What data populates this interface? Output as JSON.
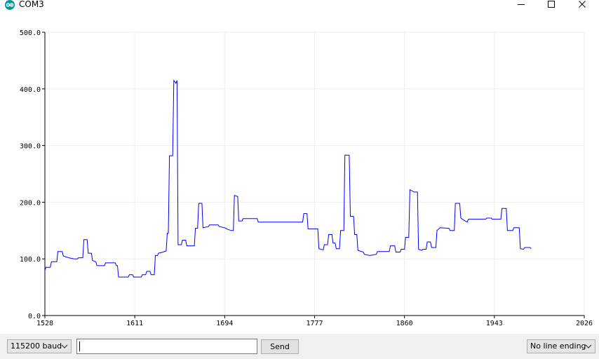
{
  "window": {
    "title": "COM3"
  },
  "icons": {
    "app": "arduino-logo-icon",
    "minimize": "minimize-icon",
    "maximize": "maximize-icon",
    "close": "close-icon",
    "dropdown": "chevron-down-icon"
  },
  "colors": {
    "line": "#0000ff",
    "grid": "#eeeeee",
    "axis": "#000000",
    "statusbar": "#f0f0f0",
    "app_icon": "#00979c"
  },
  "chart_data": {
    "type": "line",
    "ylim": [
      0,
      500
    ],
    "xlim": [
      1528,
      2026
    ],
    "yticks": [
      "0.0",
      "100.0",
      "200.0",
      "300.0",
      "400.0",
      "500.0"
    ],
    "xticks": [
      "1528",
      "1611",
      "1694",
      "1777",
      "1860",
      "1943",
      "2026"
    ],
    "grid": true,
    "series": [
      {
        "color": "#0000ff",
        "points": [
          [
            1528,
            80
          ],
          [
            1529,
            85
          ],
          [
            1533,
            85
          ],
          [
            1534,
            95
          ],
          [
            1539,
            95
          ],
          [
            1540,
            113
          ],
          [
            1544,
            113
          ],
          [
            1545,
            105
          ],
          [
            1550,
            102
          ],
          [
            1555,
            100
          ],
          [
            1558,
            100
          ],
          [
            1559,
            102
          ],
          [
            1563,
            102
          ],
          [
            1564,
            134
          ],
          [
            1567,
            134
          ],
          [
            1568,
            110
          ],
          [
            1571,
            110
          ],
          [
            1572,
            97
          ],
          [
            1575,
            95
          ],
          [
            1576,
            88
          ],
          [
            1583,
            88
          ],
          [
            1584,
            93
          ],
          [
            1593,
            93
          ],
          [
            1594,
            88
          ],
          [
            1595,
            88
          ],
          [
            1596,
            68
          ],
          [
            1605,
            68
          ],
          [
            1606,
            72
          ],
          [
            1609,
            72
          ],
          [
            1610,
            68
          ],
          [
            1617,
            68
          ],
          [
            1618,
            72
          ],
          [
            1621,
            72
          ],
          [
            1622,
            78
          ],
          [
            1625,
            78
          ],
          [
            1626,
            72
          ],
          [
            1629,
            72
          ],
          [
            1630,
            106
          ],
          [
            1632,
            106
          ],
          [
            1633,
            110
          ],
          [
            1637,
            112
          ],
          [
            1640,
            114
          ],
          [
            1641,
            145
          ],
          [
            1642,
            145
          ],
          [
            1643,
            282
          ],
          [
            1646,
            282
          ],
          [
            1647,
            415
          ],
          [
            1649,
            410
          ],
          [
            1650,
            415
          ],
          [
            1651,
            125
          ],
          [
            1654,
            125
          ],
          [
            1655,
            133
          ],
          [
            1658,
            133
          ],
          [
            1659,
            123
          ],
          [
            1666,
            123
          ],
          [
            1667,
            154
          ],
          [
            1669,
            154
          ],
          [
            1670,
            198
          ],
          [
            1673,
            198
          ],
          [
            1674,
            155
          ],
          [
            1679,
            157
          ],
          [
            1680,
            160
          ],
          [
            1688,
            160
          ],
          [
            1689,
            157
          ],
          [
            1694,
            155
          ],
          [
            1697,
            152
          ],
          [
            1700,
            150
          ],
          [
            1702,
            150
          ],
          [
            1703,
            212
          ],
          [
            1706,
            210
          ],
          [
            1707,
            167
          ],
          [
            1710,
            167
          ],
          [
            1711,
            171
          ],
          [
            1724,
            171
          ],
          [
            1725,
            165
          ],
          [
            1766,
            165
          ],
          [
            1767,
            180
          ],
          [
            1770,
            180
          ],
          [
            1771,
            153
          ],
          [
            1780,
            153
          ],
          [
            1781,
            118
          ],
          [
            1785,
            116
          ],
          [
            1786,
            125
          ],
          [
            1789,
            125
          ],
          [
            1790,
            143
          ],
          [
            1793,
            143
          ],
          [
            1794,
            128
          ],
          [
            1796,
            128
          ],
          [
            1797,
            118
          ],
          [
            1800,
            118
          ],
          [
            1801,
            150
          ],
          [
            1804,
            150
          ],
          [
            1805,
            283
          ],
          [
            1809,
            283
          ],
          [
            1810,
            175
          ],
          [
            1813,
            175
          ],
          [
            1814,
            143
          ],
          [
            1816,
            143
          ],
          [
            1817,
            115
          ],
          [
            1822,
            112
          ],
          [
            1823,
            108
          ],
          [
            1828,
            106
          ],
          [
            1834,
            108
          ],
          [
            1835,
            113
          ],
          [
            1846,
            113
          ],
          [
            1847,
            123
          ],
          [
            1851,
            123
          ],
          [
            1852,
            112
          ],
          [
            1856,
            112
          ],
          [
            1857,
            117
          ],
          [
            1860,
            117
          ],
          [
            1861,
            138
          ],
          [
            1864,
            138
          ],
          [
            1865,
            222
          ],
          [
            1869,
            218
          ],
          [
            1872,
            218
          ],
          [
            1873,
            117
          ],
          [
            1876,
            115
          ],
          [
            1877,
            117
          ],
          [
            1880,
            117
          ],
          [
            1881,
            130
          ],
          [
            1884,
            130
          ],
          [
            1885,
            120
          ],
          [
            1889,
            120
          ],
          [
            1890,
            150
          ],
          [
            1893,
            155
          ],
          [
            1901,
            154
          ],
          [
            1902,
            150
          ],
          [
            1906,
            150
          ],
          [
            1907,
            198
          ],
          [
            1911,
            198
          ],
          [
            1912,
            172
          ],
          [
            1915,
            168
          ],
          [
            1918,
            165
          ],
          [
            1919,
            170
          ],
          [
            1935,
            170
          ],
          [
            1936,
            172
          ],
          [
            1940,
            172
          ],
          [
            1941,
            170
          ],
          [
            1949,
            170
          ],
          [
            1950,
            189
          ],
          [
            1954,
            189
          ],
          [
            1955,
            150
          ],
          [
            1960,
            150
          ],
          [
            1961,
            155
          ],
          [
            1966,
            155
          ],
          [
            1967,
            118
          ],
          [
            1970,
            117
          ],
          [
            1971,
            120
          ],
          [
            1976,
            120
          ],
          [
            1977,
            118
          ]
        ]
      }
    ]
  },
  "statusbar": {
    "baud": "115200 baud",
    "input_value": "",
    "send_label": "Send",
    "line_ending": "No line ending"
  }
}
